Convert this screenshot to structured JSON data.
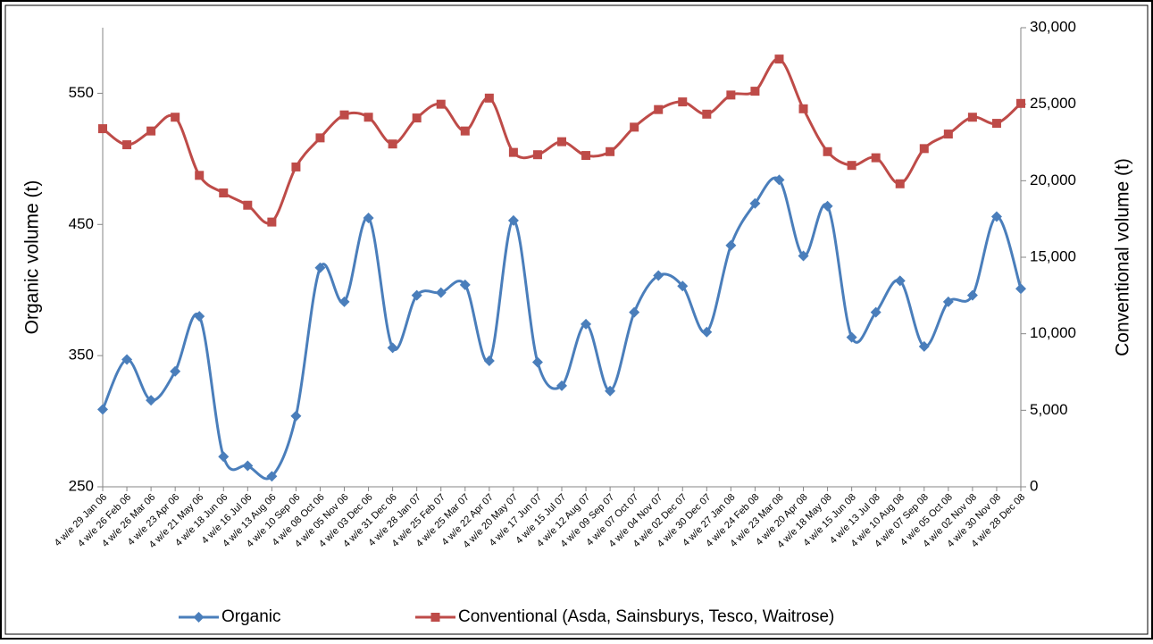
{
  "chart_data": {
    "type": "line",
    "y_label": "Organic volume (t)",
    "y2_label": "Conventional volume (t)",
    "categories": [
      "4 w/e 29 Jan 06",
      "4 w/e 26 Feb 06",
      "4 w/e 26 Mar 06",
      "4 w/e 23 Apr 06",
      "4 w/e 21 May 06",
      "4 w/e 18 Jun 06",
      "4 w/e 16 Jul 06",
      "4 w/e 13 Aug 06",
      "4 w/e 10 Sep 06",
      "4 w/e 08 Oct 06",
      "4 w/e 05 Nov 06",
      "4 w/e 03 Dec 06",
      "4 w/e 31 Dec 06",
      "4 w/e 28 Jan 07",
      "4 w/e 25 Feb 07",
      "4 w/e 25 Mar 07",
      "4 w/e 22 Apr 07",
      "4 w/e 20 May 07",
      "4 w/e 17 Jun 07",
      "4 w/e 15 Jul 07",
      "4 w/e 12 Aug 07",
      "4 w/e 09 Sep 07",
      "4 w/e 07 Oct 07",
      "4 w/e 04 Nov 07",
      "4 w/e 02 Dec 07",
      "4 w/e 30 Dec 07",
      "4 w/e 27 Jan 08",
      "4 w/e 24 Feb 08",
      "4 w/e 23 Mar 08",
      "4 w/e 20 Apr 08",
      "4 w/e 18 May 08",
      "4 w/e 15 Jun 08",
      "4 w/e 13 Jul 08",
      "4 w/e 10 Aug 08",
      "4 w/e 07 Sep 08",
      "4 w/e 05 Oct 08",
      "4 w/e 02 Nov 08",
      "4 w/e 30 Nov 08",
      "4 w/e 28 Dec 08"
    ],
    "series": [
      {
        "name": "Organic",
        "color": "#4a7ebb",
        "marker": "diamond",
        "values": [
          309,
          347,
          316,
          338,
          380,
          273,
          266,
          258,
          304,
          417,
          391,
          455,
          356,
          396,
          398,
          404,
          346,
          453,
          345,
          327,
          374,
          323,
          383,
          411,
          403,
          368,
          434,
          466,
          484,
          426,
          464,
          364,
          383,
          407,
          357,
          391,
          396,
          456,
          401
        ]
      },
      {
        "name": "Conventional (Asda, Sainsburys, Tesco, Waitrose)",
        "color": "#be4b48",
        "marker": "square",
        "axis": "y2",
        "values": [
          23400,
          22350,
          23250,
          24150,
          20350,
          19200,
          18400,
          17300,
          20900,
          22800,
          24300,
          24150,
          22400,
          24100,
          25000,
          23250,
          25400,
          21850,
          21700,
          22550,
          21650,
          21900,
          23500,
          24650,
          25150,
          24350,
          25600,
          25850,
          27950,
          24700,
          21900,
          21000,
          21500,
          19800,
          22100,
          23050,
          24150,
          23750,
          25050
        ]
      }
    ],
    "ylim": [
      250,
      600
    ],
    "yticks": [
      250,
      350,
      450,
      550
    ],
    "y2lim": [
      0,
      30000
    ],
    "y2ticks": [
      0,
      {
        "value": 5000,
        "label": "5,000"
      },
      {
        "value": 10000,
        "label": "10,000"
      },
      {
        "value": 15000,
        "label": "15,000"
      },
      {
        "value": 20000,
        "label": "20,000"
      },
      {
        "value": 25000,
        "label": "25,000"
      },
      {
        "value": 30000,
        "label": "30,000"
      }
    ],
    "smooth": true,
    "legend": "bottom"
  }
}
